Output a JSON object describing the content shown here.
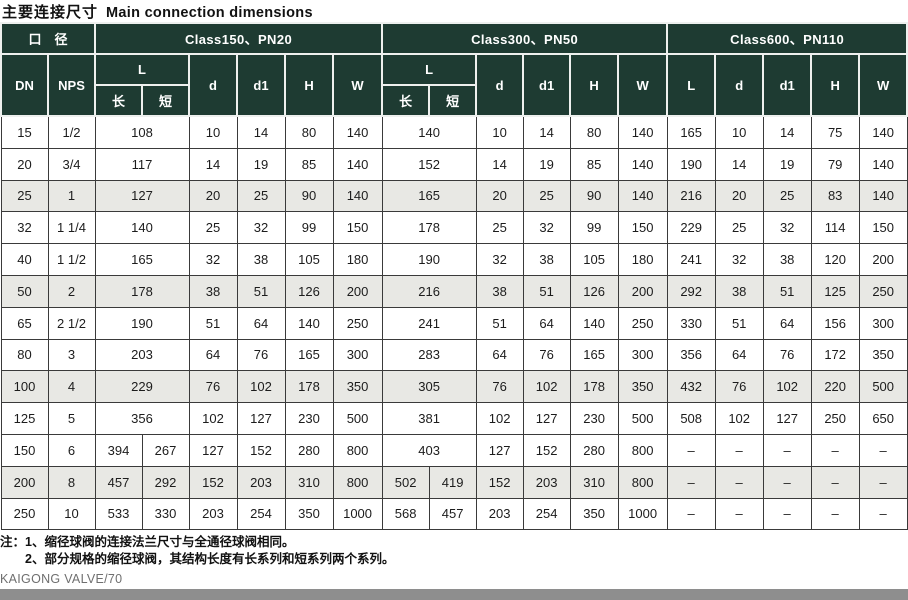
{
  "page": {
    "title_zh": "主要连接尺寸",
    "title_en": "Main connection dimensions",
    "note1": "注：1、缩径球阀的连接法兰尺寸与全通径球阀相同。",
    "note2": "2、部分规格的缩径球阀，其结构长度有长系列和短系列两个系列。",
    "footer": "KAIGONG VALVE/70"
  },
  "colors": {
    "header_bg": "#1e3b32",
    "header_text": "#ffffff",
    "row_shaded": "#e8e8e4",
    "body_border": "#3a3a3a",
    "bottom_bar": "#8e8e8e"
  },
  "table": {
    "header": {
      "diameter": "口　径",
      "dn": "DN",
      "nps": "NPS",
      "l": "L",
      "long": "长",
      "short": "短",
      "d": "d",
      "d1": "d1",
      "h": "H",
      "w": "W",
      "sections": [
        {
          "label": "Class150、PN20"
        },
        {
          "label": "Class300、PN50"
        },
        {
          "label": "Class600、PN110"
        }
      ]
    },
    "rows": [
      {
        "dn": "15",
        "nps": "1/2",
        "shaded": false,
        "c150": {
          "l": [
            "108"
          ],
          "d": "10",
          "d1": "14",
          "h": "80",
          "w": "140"
        },
        "c300": {
          "l": [
            "140"
          ],
          "d": "10",
          "d1": "14",
          "h": "80",
          "w": "140"
        },
        "c600": {
          "l": "165",
          "d": "10",
          "d1": "14",
          "h": "75",
          "w": "140"
        }
      },
      {
        "dn": "20",
        "nps": "3/4",
        "shaded": false,
        "c150": {
          "l": [
            "117"
          ],
          "d": "14",
          "d1": "19",
          "h": "85",
          "w": "140"
        },
        "c300": {
          "l": [
            "152"
          ],
          "d": "14",
          "d1": "19",
          "h": "85",
          "w": "140"
        },
        "c600": {
          "l": "190",
          "d": "14",
          "d1": "19",
          "h": "79",
          "w": "140"
        }
      },
      {
        "dn": "25",
        "nps": "1",
        "shaded": true,
        "c150": {
          "l": [
            "127"
          ],
          "d": "20",
          "d1": "25",
          "h": "90",
          "w": "140"
        },
        "c300": {
          "l": [
            "165"
          ],
          "d": "20",
          "d1": "25",
          "h": "90",
          "w": "140"
        },
        "c600": {
          "l": "216",
          "d": "20",
          "d1": "25",
          "h": "83",
          "w": "140"
        }
      },
      {
        "dn": "32",
        "nps": "1 1/4",
        "shaded": false,
        "c150": {
          "l": [
            "140"
          ],
          "d": "25",
          "d1": "32",
          "h": "99",
          "w": "150"
        },
        "c300": {
          "l": [
            "178"
          ],
          "d": "25",
          "d1": "32",
          "h": "99",
          "w": "150"
        },
        "c600": {
          "l": "229",
          "d": "25",
          "d1": "32",
          "h": "114",
          "w": "150"
        }
      },
      {
        "dn": "40",
        "nps": "1 1/2",
        "shaded": false,
        "c150": {
          "l": [
            "165"
          ],
          "d": "32",
          "d1": "38",
          "h": "105",
          "w": "180"
        },
        "c300": {
          "l": [
            "190"
          ],
          "d": "32",
          "d1": "38",
          "h": "105",
          "w": "180"
        },
        "c600": {
          "l": "241",
          "d": "32",
          "d1": "38",
          "h": "120",
          "w": "200"
        }
      },
      {
        "dn": "50",
        "nps": "2",
        "shaded": true,
        "c150": {
          "l": [
            "178"
          ],
          "d": "38",
          "d1": "51",
          "h": "126",
          "w": "200"
        },
        "c300": {
          "l": [
            "216"
          ],
          "d": "38",
          "d1": "51",
          "h": "126",
          "w": "200"
        },
        "c600": {
          "l": "292",
          "d": "38",
          "d1": "51",
          "h": "125",
          "w": "250"
        }
      },
      {
        "dn": "65",
        "nps": "2 1/2",
        "shaded": false,
        "c150": {
          "l": [
            "190"
          ],
          "d": "51",
          "d1": "64",
          "h": "140",
          "w": "250"
        },
        "c300": {
          "l": [
            "241"
          ],
          "d": "51",
          "d1": "64",
          "h": "140",
          "w": "250"
        },
        "c600": {
          "l": "330",
          "d": "51",
          "d1": "64",
          "h": "156",
          "w": "300"
        }
      },
      {
        "dn": "80",
        "nps": "3",
        "shaded": false,
        "c150": {
          "l": [
            "203"
          ],
          "d": "64",
          "d1": "76",
          "h": "165",
          "w": "300"
        },
        "c300": {
          "l": [
            "283"
          ],
          "d": "64",
          "d1": "76",
          "h": "165",
          "w": "300"
        },
        "c600": {
          "l": "356",
          "d": "64",
          "d1": "76",
          "h": "172",
          "w": "350"
        }
      },
      {
        "dn": "100",
        "nps": "4",
        "shaded": true,
        "c150": {
          "l": [
            "229"
          ],
          "d": "76",
          "d1": "102",
          "h": "178",
          "w": "350"
        },
        "c300": {
          "l": [
            "305"
          ],
          "d": "76",
          "d1": "102",
          "h": "178",
          "w": "350"
        },
        "c600": {
          "l": "432",
          "d": "76",
          "d1": "102",
          "h": "220",
          "w": "500"
        }
      },
      {
        "dn": "125",
        "nps": "5",
        "shaded": false,
        "c150": {
          "l": [
            "356"
          ],
          "d": "102",
          "d1": "127",
          "h": "230",
          "w": "500"
        },
        "c300": {
          "l": [
            "381"
          ],
          "d": "102",
          "d1": "127",
          "h": "230",
          "w": "500"
        },
        "c600": {
          "l": "508",
          "d": "102",
          "d1": "127",
          "h": "250",
          "w": "650"
        }
      },
      {
        "dn": "150",
        "nps": "6",
        "shaded": false,
        "c150": {
          "l": [
            "394",
            "267"
          ],
          "d": "127",
          "d1": "152",
          "h": "280",
          "w": "800"
        },
        "c300": {
          "l": [
            "403"
          ],
          "d": "127",
          "d1": "152",
          "h": "280",
          "w": "800"
        },
        "c600": {
          "l": "–",
          "d": "–",
          "d1": "–",
          "h": "–",
          "w": "–"
        }
      },
      {
        "dn": "200",
        "nps": "8",
        "shaded": true,
        "c150": {
          "l": [
            "457",
            "292"
          ],
          "d": "152",
          "d1": "203",
          "h": "310",
          "w": "800"
        },
        "c300": {
          "l": [
            "502",
            "419"
          ],
          "d": "152",
          "d1": "203",
          "h": "310",
          "w": "800"
        },
        "c600": {
          "l": "–",
          "d": "–",
          "d1": "–",
          "h": "–",
          "w": "–"
        }
      },
      {
        "dn": "250",
        "nps": "10",
        "shaded": false,
        "c150": {
          "l": [
            "533",
            "330"
          ],
          "d": "203",
          "d1": "254",
          "h": "350",
          "w": "1000"
        },
        "c300": {
          "l": [
            "568",
            "457"
          ],
          "d": "203",
          "d1": "254",
          "h": "350",
          "w": "1000"
        },
        "c600": {
          "l": "–",
          "d": "–",
          "d1": "–",
          "h": "–",
          "w": "–"
        }
      }
    ]
  }
}
